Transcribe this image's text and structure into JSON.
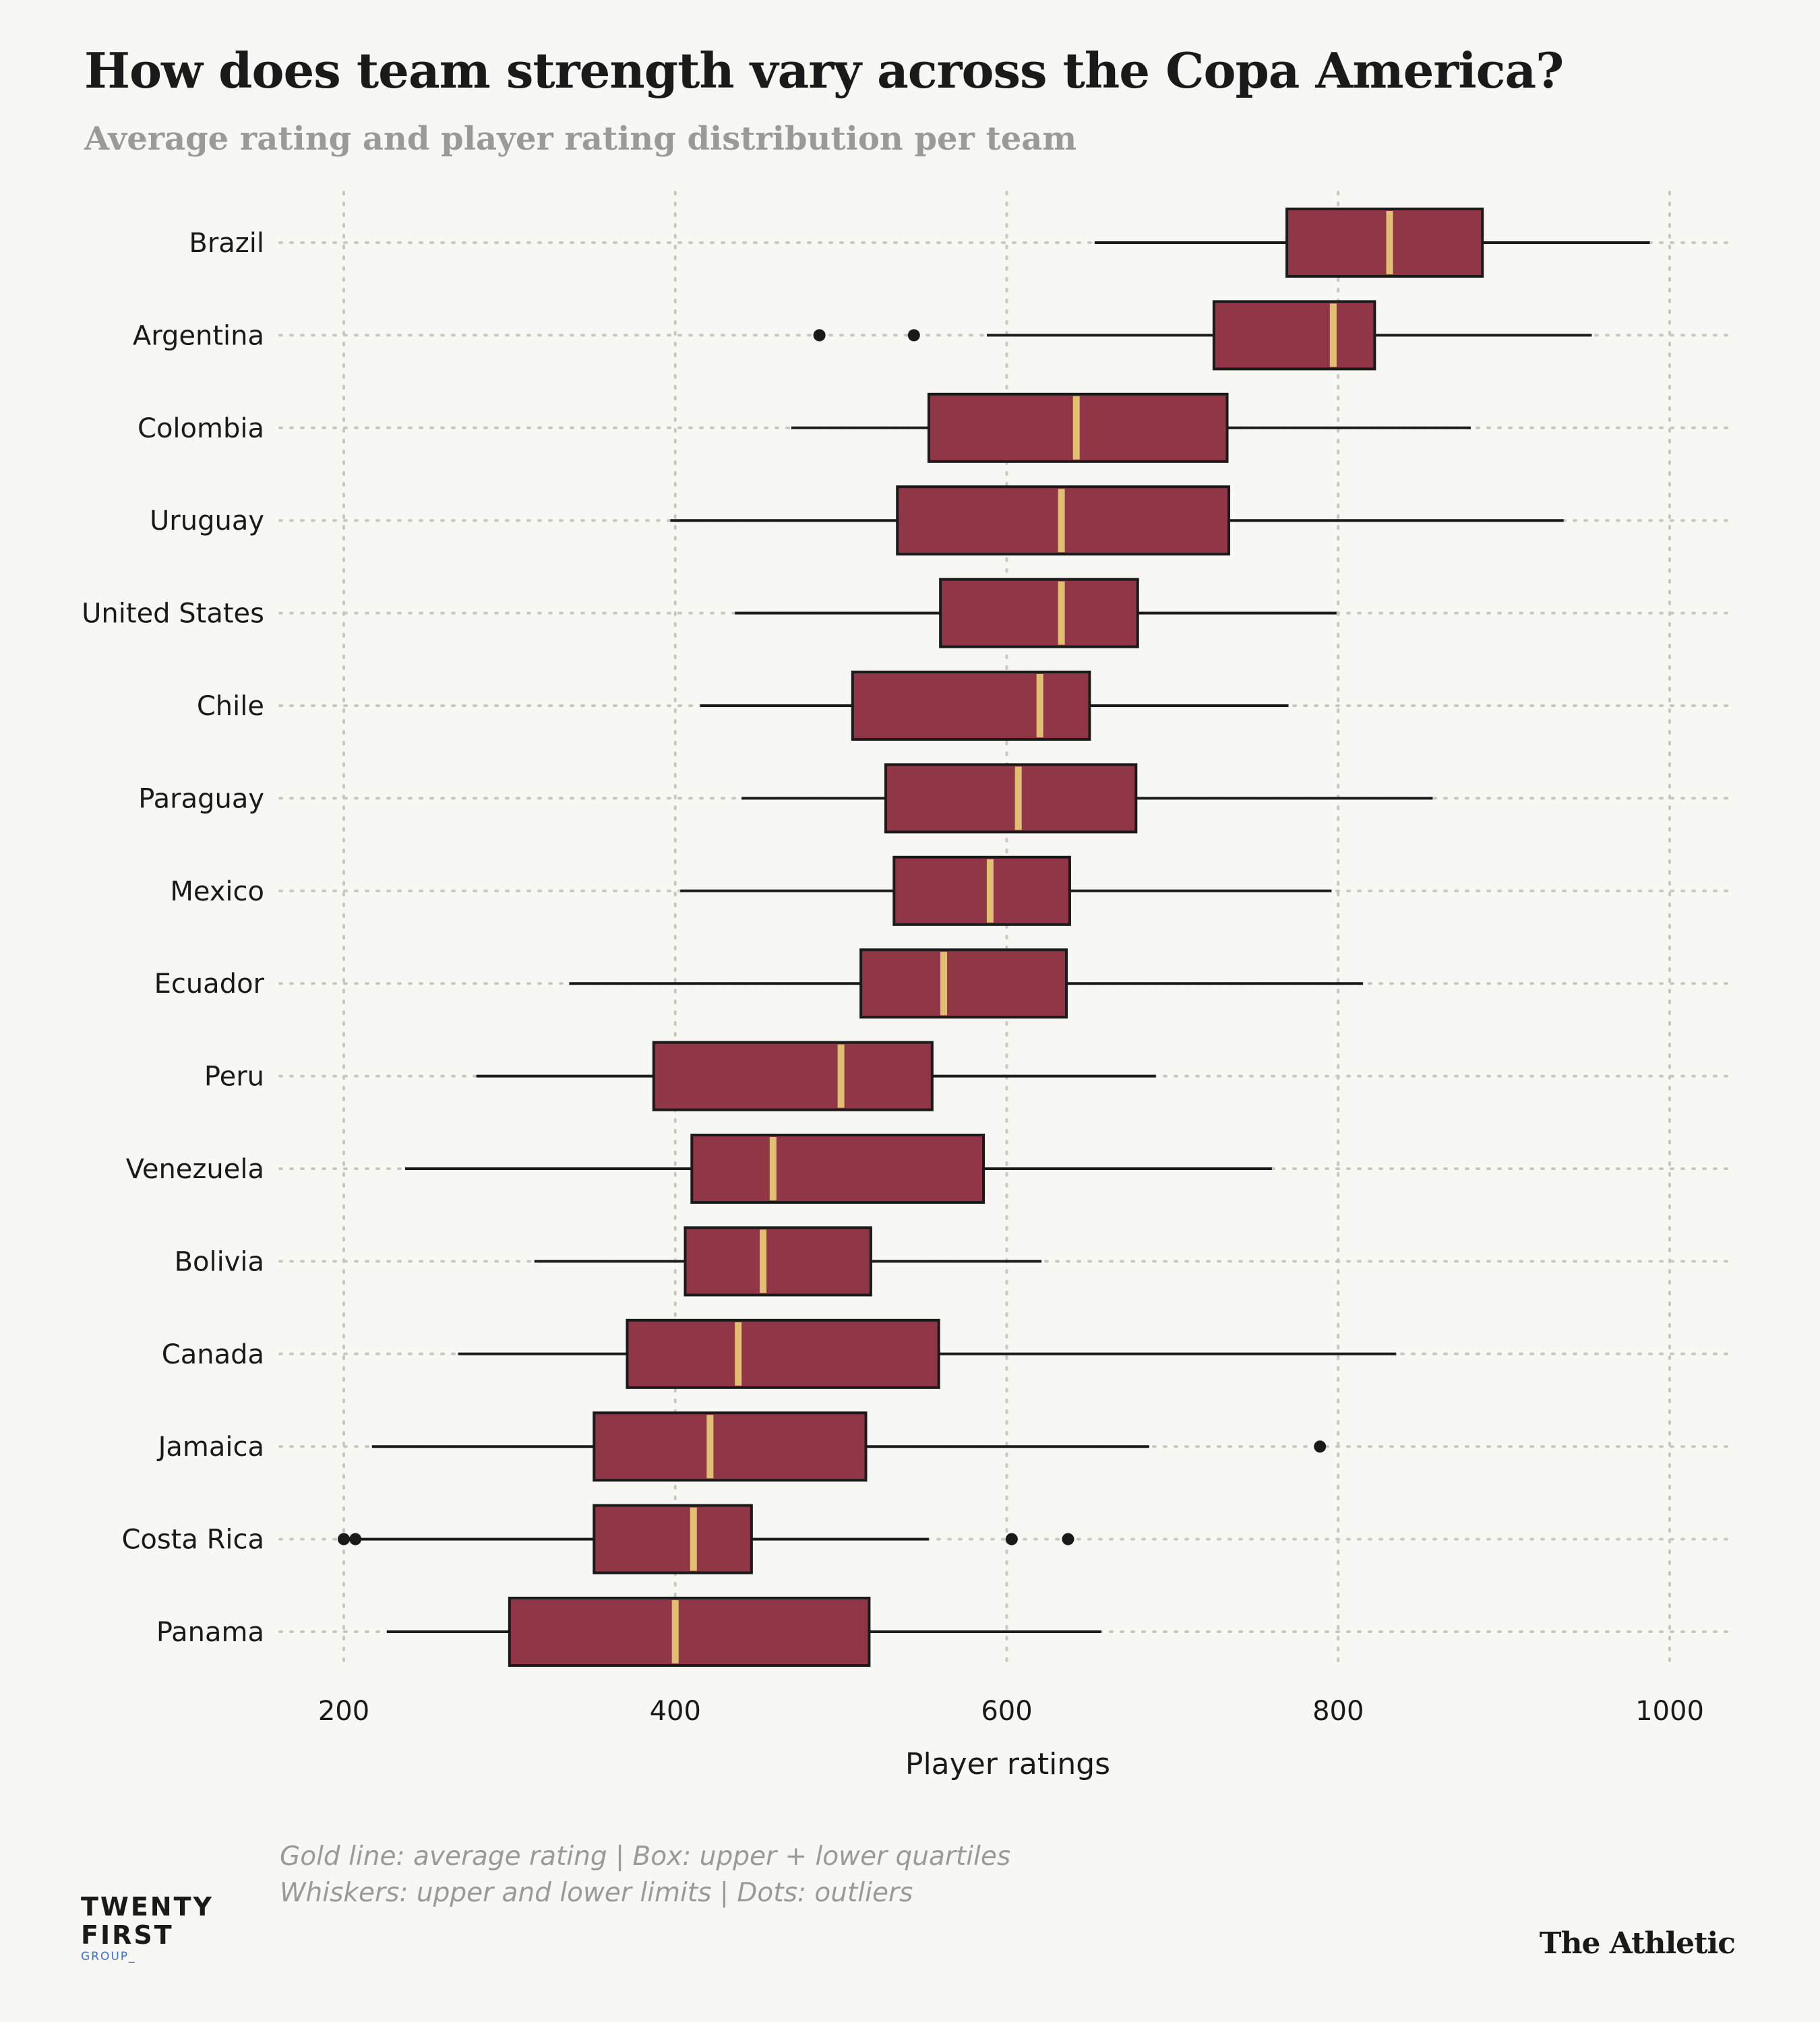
{
  "title": "How does team strength vary across the Copa America?",
  "subtitle": "Average rating and player rating distribution per team",
  "footnote": {
    "line1": "Gold line: average rating | Box: upper + lower quartiles",
    "line2": "Whiskers: upper and lower limits | Dots: outliers"
  },
  "brand": {
    "line1": "TWENTY",
    "line2": "FIRST",
    "line3": "GROUP_"
  },
  "publisher": "The Athletic",
  "colors": {
    "box": "#913646",
    "median": "#e0bf72",
    "outline": "#1a1a1a",
    "grid": "#c8c8c0",
    "background": "#f7f7f3"
  },
  "chart_data": {
    "type": "boxplot",
    "xlabel": "Player ratings",
    "ylabel": "",
    "xlim": [
      160,
      1040
    ],
    "xticks": [
      200,
      400,
      600,
      800,
      1000
    ],
    "grid": true,
    "legend": "none",
    "teams": [
      {
        "name": "Brazil",
        "whisker_low": 653,
        "q1": 769,
        "avg": 831,
        "q3": 887,
        "whisker_high": 988,
        "outliers": []
      },
      {
        "name": "Argentina",
        "whisker_low": 588,
        "q1": 725,
        "avg": 797,
        "q3": 822,
        "whisker_high": 953,
        "outliers": [
          487,
          544
        ]
      },
      {
        "name": "Colombia",
        "whisker_low": 470,
        "q1": 553,
        "avg": 642,
        "q3": 733,
        "whisker_high": 880,
        "outliers": []
      },
      {
        "name": "Uruguay",
        "whisker_low": 397,
        "q1": 534,
        "avg": 633,
        "q3": 734,
        "whisker_high": 936,
        "outliers": []
      },
      {
        "name": "United States",
        "whisker_low": 436,
        "q1": 560,
        "avg": 633,
        "q3": 679,
        "whisker_high": 799,
        "outliers": []
      },
      {
        "name": "Chile",
        "whisker_low": 415,
        "q1": 507,
        "avg": 620,
        "q3": 650,
        "whisker_high": 770,
        "outliers": []
      },
      {
        "name": "Paraguay",
        "whisker_low": 440,
        "q1": 527,
        "avg": 607,
        "q3": 678,
        "whisker_high": 857,
        "outliers": []
      },
      {
        "name": "Mexico",
        "whisker_low": 403,
        "q1": 532,
        "avg": 590,
        "q3": 638,
        "whisker_high": 796,
        "outliers": []
      },
      {
        "name": "Ecuador",
        "whisker_low": 336,
        "q1": 512,
        "avg": 562,
        "q3": 636,
        "whisker_high": 815,
        "outliers": []
      },
      {
        "name": "Peru",
        "whisker_low": 280,
        "q1": 387,
        "avg": 500,
        "q3": 555,
        "whisker_high": 690,
        "outliers": []
      },
      {
        "name": "Venezuela",
        "whisker_low": 237,
        "q1": 410,
        "avg": 459,
        "q3": 586,
        "whisker_high": 760,
        "outliers": []
      },
      {
        "name": "Bolivia",
        "whisker_low": 315,
        "q1": 406,
        "avg": 453,
        "q3": 518,
        "whisker_high": 621,
        "outliers": []
      },
      {
        "name": "Canada",
        "whisker_low": 269,
        "q1": 371,
        "avg": 438,
        "q3": 559,
        "whisker_high": 835,
        "outliers": []
      },
      {
        "name": "Jamaica",
        "whisker_low": 217,
        "q1": 351,
        "avg": 421,
        "q3": 515,
        "whisker_high": 686,
        "outliers": [
          789
        ]
      },
      {
        "name": "Costa Rica",
        "whisker_low": 210,
        "q1": 351,
        "avg": 411,
        "q3": 446,
        "whisker_high": 553,
        "outliers": [
          200,
          207,
          603,
          637
        ]
      },
      {
        "name": "Panama",
        "whisker_low": 226,
        "q1": 300,
        "avg": 400,
        "q3": 517,
        "whisker_high": 657,
        "outliers": []
      }
    ]
  }
}
